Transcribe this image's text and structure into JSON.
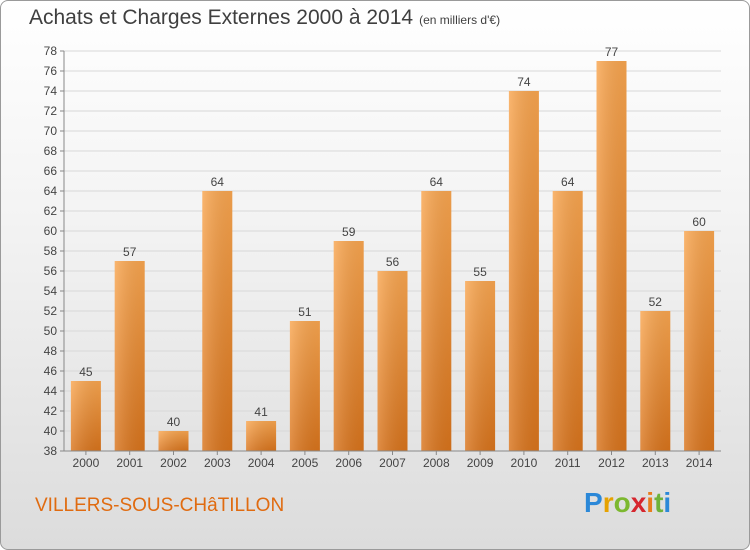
{
  "title": "Achats et Charges Externes 2000 à 2014",
  "unit": "(en milliers d'€)",
  "commune": "VILLERS-SOUS-CHâTILLON",
  "logo": {
    "p": "P",
    "r": "r",
    "o": "o",
    "x": "x",
    "i1": "i",
    "t": "t",
    "i2": "i"
  },
  "colors": {
    "bar_light": "#f9a650",
    "bar_dark": "#d9741c",
    "grid": "#d8d8d8",
    "axis": "#888888"
  },
  "chart_data": {
    "type": "bar",
    "title": "Achats et Charges Externes 2000 à 2014",
    "subtitle": "(en milliers d'€)",
    "xlabel": "",
    "ylabel": "",
    "categories": [
      "2000",
      "2001",
      "2002",
      "2003",
      "2004",
      "2005",
      "2006",
      "2007",
      "2008",
      "2009",
      "2010",
      "2011",
      "2012",
      "2013",
      "2014"
    ],
    "values": [
      45,
      57,
      40,
      64,
      41,
      51,
      59,
      56,
      64,
      55,
      74,
      64,
      77,
      52,
      60
    ],
    "ylim": [
      38,
      78
    ],
    "yticks": [
      38,
      40,
      42,
      44,
      46,
      48,
      50,
      52,
      54,
      56,
      58,
      60,
      62,
      64,
      66,
      68,
      70,
      72,
      74,
      76,
      78
    ],
    "grid": true,
    "data_labels": true
  }
}
